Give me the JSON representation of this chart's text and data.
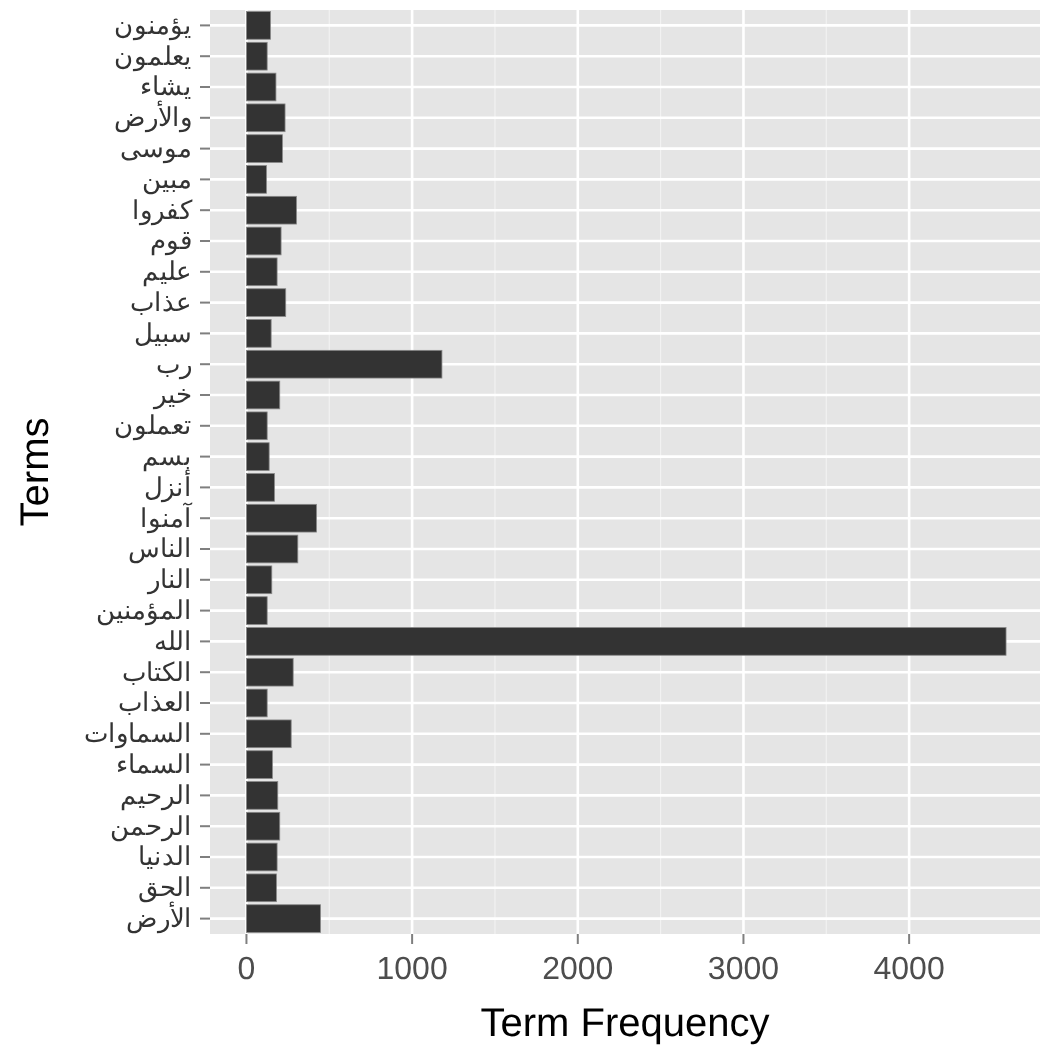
{
  "chart_data": {
    "type": "bar",
    "orientation": "horizontal",
    "xlabel": "Term Frequency",
    "ylabel": "Terms",
    "categories": [
      "يؤمنون",
      "يعلمون",
      "يشاء",
      "والأرض",
      "موسى",
      "مبين",
      "كفروا",
      "قوم",
      "عليم",
      "عذاب",
      "سبيل",
      "رب",
      "خير",
      "تعملون",
      "بسم",
      "أنزل",
      "آمنوا",
      "الناس",
      "النار",
      "المؤمنين",
      "الله",
      "الكتاب",
      "العذاب",
      "السماوات",
      "السماء",
      "الرحيم",
      "الرحمن",
      "الدنيا",
      "الحق",
      "الأرض"
    ],
    "values": [
      145,
      125,
      178,
      233,
      217,
      121,
      302,
      209,
      185,
      237,
      149,
      1180,
      201,
      125,
      137,
      169,
      423,
      310,
      153,
      125,
      4585,
      282,
      125,
      270,
      157,
      189,
      201,
      185,
      181,
      447
    ],
    "color": "#333333",
    "xlim": [
      -220,
      4790
    ],
    "xticks": [
      0,
      1000,
      2000,
      3000,
      4000
    ],
    "grid": true
  }
}
